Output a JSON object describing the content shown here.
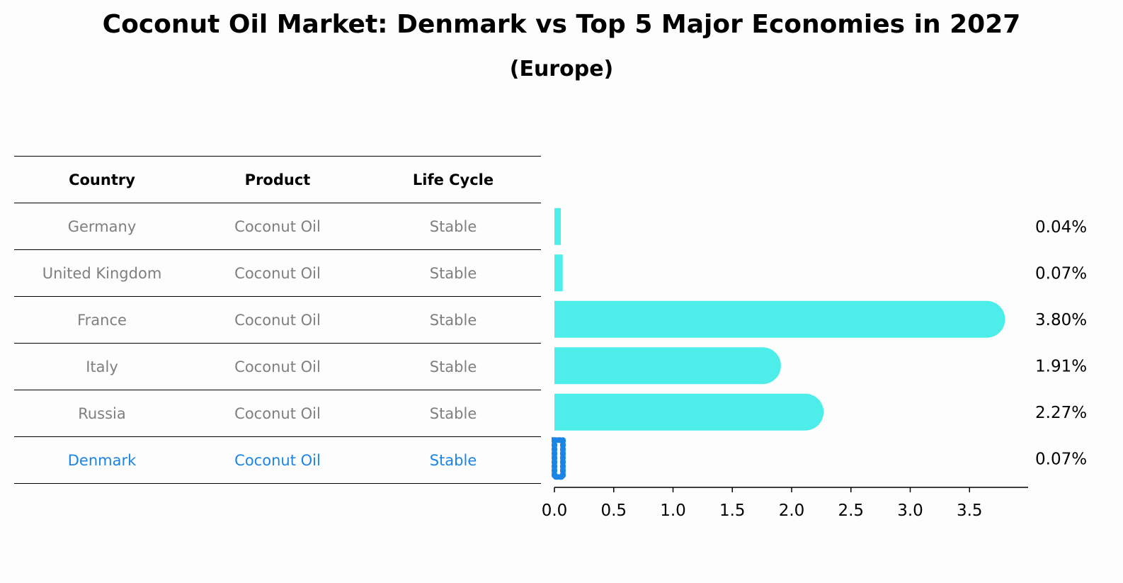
{
  "title": "Coconut Oil Market: Denmark vs Top 5 Major Economies in 2027",
  "subtitle": "(Europe)",
  "table": {
    "headers": [
      "Country",
      "Product",
      "Life Cycle"
    ],
    "rows": [
      [
        "Germany",
        "Coconut Oil",
        "Stable"
      ],
      [
        "United Kingdom",
        "Coconut Oil",
        "Stable"
      ],
      [
        "France",
        "Coconut Oil",
        "Stable"
      ],
      [
        "Italy",
        "Coconut Oil",
        "Stable"
      ],
      [
        "Russia",
        "Coconut Oil",
        "Stable"
      ],
      [
        "Denmark",
        "Coconut Oil",
        "Stable"
      ]
    ],
    "highlight_row": 5
  },
  "chart_data": {
    "type": "bar",
    "orientation": "horizontal",
    "categories": [
      "Germany",
      "United Kingdom",
      "France",
      "Italy",
      "Russia",
      "Denmark"
    ],
    "values": [
      0.04,
      0.07,
      3.8,
      1.91,
      2.27,
      0.07
    ],
    "value_labels": [
      "0.04%",
      "0.07%",
      "3.80%",
      "1.91%",
      "2.27%",
      "0.07%"
    ],
    "xlim": [
      0,
      4.0
    ],
    "xticks": [
      "0.0",
      "0.5",
      "1.0",
      "1.5",
      "2.0",
      "2.5",
      "3.0",
      "3.5"
    ],
    "xtick_values": [
      0,
      0.5,
      1.0,
      1.5,
      2.0,
      2.5,
      3.0,
      3.5
    ],
    "colors": {
      "bar": "#4deeea",
      "highlight": "#1a85e6"
    },
    "highlight_index": 5,
    "grid": false,
    "xlabel": "",
    "ylabel": ""
  }
}
